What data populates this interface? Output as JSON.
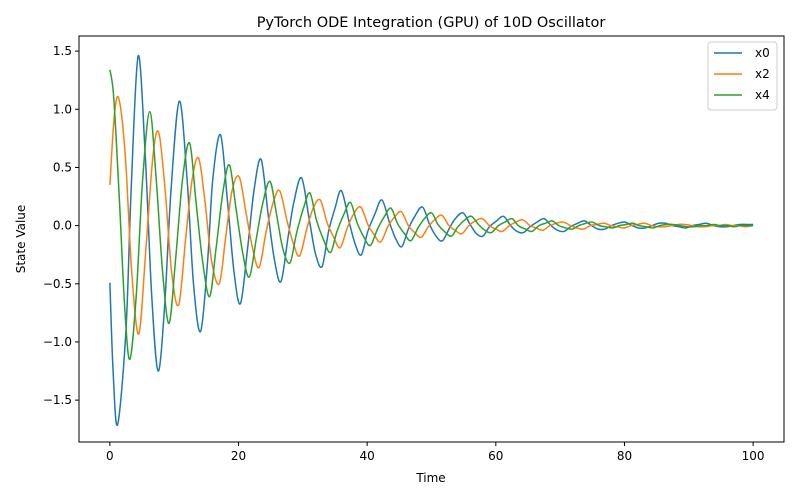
{
  "chart_data": {
    "type": "line",
    "title": "PyTorch ODE Integration (GPU) of 10D Oscillator",
    "xlabel": "Time",
    "ylabel": "State Value",
    "xlim": [
      -4.8,
      104.8
    ],
    "ylim": [
      -1.86,
      1.63
    ],
    "x_ticks": [
      0,
      20,
      40,
      60,
      80,
      100
    ],
    "y_ticks": [
      -1.5,
      -1.0,
      -0.5,
      0.0,
      0.5,
      1.0,
      1.5
    ],
    "x_tick_labels": [
      "0",
      "20",
      "40",
      "60",
      "80",
      "100"
    ],
    "y_tick_labels": [
      "−1.5",
      "−1.0",
      "−0.5",
      "0.0",
      "0.5",
      "1.0",
      "1.5"
    ],
    "grid": false,
    "legend_position": "top-right",
    "series": [
      {
        "name": "x0",
        "color": "#1f77b4",
        "points": [
          [
            0,
            -0.49
          ],
          [
            0.5,
            -1.25
          ],
          [
            1.2,
            -1.71
          ],
          [
            2.5,
            -0.9
          ],
          [
            3.3,
            0.3
          ],
          [
            4.4,
            1.46
          ],
          [
            5.5,
            0.6
          ],
          [
            6.5,
            -0.6
          ],
          [
            7.5,
            -1.25
          ],
          [
            8.5,
            -0.7
          ],
          [
            9.5,
            0.3
          ],
          [
            10.8,
            1.07
          ],
          [
            12,
            0.4
          ],
          [
            13,
            -0.5
          ],
          [
            14.1,
            -0.91
          ],
          [
            15.2,
            -0.3
          ],
          [
            16,
            0.4
          ],
          [
            17.2,
            0.78
          ],
          [
            18.3,
            0.2
          ],
          [
            19.3,
            -0.4
          ],
          [
            20.3,
            -0.67
          ],
          [
            21.4,
            -0.2
          ],
          [
            22.4,
            0.3
          ],
          [
            23.5,
            0.57
          ],
          [
            24.6,
            0.1
          ],
          [
            25.6,
            -0.3
          ],
          [
            26.6,
            -0.48
          ],
          [
            27.7,
            -0.1
          ],
          [
            28.6,
            0.2
          ],
          [
            29.8,
            0.41
          ],
          [
            31,
            0.05
          ],
          [
            32,
            -0.25
          ],
          [
            33,
            -0.35
          ],
          [
            34,
            -0.05
          ],
          [
            35,
            0.15
          ],
          [
            36,
            0.3
          ],
          [
            37.2,
            0.03
          ],
          [
            38.2,
            -0.17
          ],
          [
            39.1,
            -0.25
          ],
          [
            40.1,
            -0.05
          ],
          [
            41.2,
            0.1
          ],
          [
            42.3,
            0.22
          ],
          [
            43.5,
            0.02
          ],
          [
            44.5,
            -0.12
          ],
          [
            45.4,
            -0.18
          ],
          [
            46.4,
            -0.03
          ],
          [
            47.4,
            0.08
          ],
          [
            48.6,
            0.16
          ],
          [
            49.7,
            0.01
          ],
          [
            50.7,
            -0.09
          ],
          [
            51.7,
            -0.13
          ],
          [
            52.8,
            -0.02
          ],
          [
            53.7,
            0.06
          ],
          [
            54.9,
            0.11
          ],
          [
            56,
            0.01
          ],
          [
            57,
            -0.07
          ],
          [
            58,
            -0.09
          ],
          [
            59,
            -0.01
          ],
          [
            60.1,
            0.04
          ],
          [
            61.2,
            0.08
          ],
          [
            62.3,
            0.0
          ],
          [
            63.3,
            -0.05
          ],
          [
            64.3,
            -0.06
          ],
          [
            65.3,
            -0.01
          ],
          [
            66.4,
            0.03
          ],
          [
            67.5,
            0.06
          ],
          [
            68.6,
            0.0
          ],
          [
            69.6,
            -0.04
          ],
          [
            70.6,
            -0.05
          ],
          [
            71.6,
            -0.01
          ],
          [
            72.7,
            0.02
          ],
          [
            73.8,
            0.04
          ],
          [
            74.9,
            0.0
          ],
          [
            75.9,
            -0.03
          ],
          [
            76.9,
            -0.03
          ],
          [
            78,
            0.0
          ],
          [
            79,
            0.02
          ],
          [
            80.1,
            0.03
          ],
          [
            81.2,
            0.0
          ],
          [
            82.2,
            -0.02
          ],
          [
            83.2,
            -0.02
          ],
          [
            84.3,
            0.0
          ],
          [
            85.3,
            0.02
          ],
          [
            86.4,
            0.02
          ],
          [
            87.5,
            0.0
          ],
          [
            88.5,
            -0.01
          ],
          [
            89.5,
            -0.02
          ],
          [
            90.6,
            0.0
          ],
          [
            91.6,
            0.01
          ],
          [
            92.7,
            0.02
          ],
          [
            93.8,
            0.0
          ],
          [
            94.8,
            -0.01
          ],
          [
            95.8,
            -0.01
          ],
          [
            96.9,
            0.0
          ],
          [
            97.9,
            0.01
          ],
          [
            99,
            0.01
          ],
          [
            100,
            0.01
          ]
        ]
      },
      {
        "name": "x2",
        "color": "#ff7f0e",
        "points": [
          [
            0,
            0.35
          ],
          [
            0.7,
            0.95
          ],
          [
            1.4,
            1.09
          ],
          [
            2.4,
            0.6
          ],
          [
            3.4,
            -0.4
          ],
          [
            4.5,
            -0.93
          ],
          [
            5.6,
            -0.2
          ],
          [
            6.7,
            0.6
          ],
          [
            7.6,
            0.8
          ],
          [
            8.6,
            0.3
          ],
          [
            9.6,
            -0.4
          ],
          [
            10.7,
            -0.68
          ],
          [
            11.8,
            -0.1
          ],
          [
            12.8,
            0.4
          ],
          [
            13.8,
            0.58
          ],
          [
            14.8,
            0.2
          ],
          [
            15.8,
            -0.3
          ],
          [
            17,
            -0.5
          ],
          [
            18,
            -0.1
          ],
          [
            19,
            0.3
          ],
          [
            20.1,
            0.42
          ],
          [
            21.2,
            0.1
          ],
          [
            22.2,
            -0.2
          ],
          [
            23.2,
            -0.36
          ],
          [
            24.3,
            -0.05
          ],
          [
            25.4,
            0.2
          ],
          [
            26.4,
            0.3
          ],
          [
            27.5,
            0.05
          ],
          [
            28.5,
            -0.15
          ],
          [
            29.5,
            -0.26
          ],
          [
            30.6,
            -0.03
          ],
          [
            31.6,
            0.15
          ],
          [
            32.7,
            0.22
          ],
          [
            33.8,
            0.02
          ],
          [
            34.8,
            -0.1
          ],
          [
            35.8,
            -0.19
          ],
          [
            36.9,
            -0.02
          ],
          [
            37.9,
            0.1
          ],
          [
            39,
            0.16
          ],
          [
            40.1,
            0.01
          ],
          [
            41.1,
            -0.08
          ],
          [
            42.1,
            -0.14
          ],
          [
            43.2,
            -0.01
          ],
          [
            44.2,
            0.07
          ],
          [
            45.3,
            0.12
          ],
          [
            46.4,
            0.0
          ],
          [
            47.4,
            -0.06
          ],
          [
            48.4,
            -0.1
          ],
          [
            49.5,
            -0.01
          ],
          [
            50.5,
            0.05
          ],
          [
            51.6,
            0.09
          ],
          [
            52.7,
            0.0
          ],
          [
            53.7,
            -0.04
          ],
          [
            54.7,
            -0.07
          ],
          [
            55.8,
            0.0
          ],
          [
            56.8,
            0.04
          ],
          [
            57.9,
            0.06
          ],
          [
            59,
            0.0
          ],
          [
            60,
            -0.03
          ],
          [
            61,
            -0.05
          ],
          [
            62.1,
            0.0
          ],
          [
            63.1,
            0.03
          ],
          [
            64.2,
            0.05
          ],
          [
            65.3,
            0.0
          ],
          [
            66.3,
            -0.02
          ],
          [
            67.3,
            -0.04
          ],
          [
            68.4,
            0.0
          ],
          [
            69.4,
            0.02
          ],
          [
            70.5,
            0.03
          ],
          [
            71.6,
            0.0
          ],
          [
            72.6,
            -0.02
          ],
          [
            73.6,
            -0.03
          ],
          [
            74.7,
            0.0
          ],
          [
            75.7,
            0.01
          ],
          [
            76.8,
            0.02
          ],
          [
            77.9,
            0.0
          ],
          [
            78.9,
            -0.01
          ],
          [
            79.9,
            -0.02
          ],
          [
            81,
            0.0
          ],
          [
            82,
            0.01
          ],
          [
            83.1,
            0.02
          ],
          [
            84.2,
            0.0
          ],
          [
            85.2,
            -0.01
          ],
          [
            86.2,
            -0.01
          ],
          [
            87.3,
            0.0
          ],
          [
            88.3,
            0.01
          ],
          [
            89.4,
            0.01
          ],
          [
            90.5,
            0.0
          ],
          [
            91.5,
            -0.01
          ],
          [
            92.5,
            -0.01
          ],
          [
            93.6,
            0.0
          ],
          [
            94.6,
            0.0
          ],
          [
            95.7,
            0.01
          ],
          [
            96.8,
            0.0
          ],
          [
            97.8,
            0.0
          ],
          [
            98.8,
            -0.01
          ],
          [
            100,
            0.0
          ]
        ]
      },
      {
        "name": "x4",
        "color": "#2ca02c",
        "points": [
          [
            0,
            1.34
          ],
          [
            0.6,
            1.1
          ],
          [
            1.5,
            0.2
          ],
          [
            2.3,
            -0.7
          ],
          [
            3.1,
            -1.15
          ],
          [
            4.1,
            -0.6
          ],
          [
            5.1,
            0.4
          ],
          [
            6.2,
            0.98
          ],
          [
            7.2,
            0.4
          ],
          [
            8.2,
            -0.4
          ],
          [
            9.2,
            -0.84
          ],
          [
            10.2,
            -0.3
          ],
          [
            11.3,
            0.4
          ],
          [
            12.4,
            0.71
          ],
          [
            13.4,
            0.2
          ],
          [
            14.4,
            -0.3
          ],
          [
            15.5,
            -0.61
          ],
          [
            16.5,
            -0.2
          ],
          [
            17.6,
            0.3
          ],
          [
            18.6,
            0.52
          ],
          [
            19.6,
            0.15
          ],
          [
            20.7,
            -0.25
          ],
          [
            21.7,
            -0.44
          ],
          [
            22.8,
            -0.1
          ],
          [
            23.8,
            0.2
          ],
          [
            24.9,
            0.38
          ],
          [
            25.9,
            0.1
          ],
          [
            26.9,
            -0.2
          ],
          [
            28,
            -0.32
          ],
          [
            29,
            -0.07
          ],
          [
            30.1,
            0.15
          ],
          [
            31.1,
            0.28
          ],
          [
            32.1,
            0.05
          ],
          [
            33.2,
            -0.12
          ],
          [
            34.3,
            -0.23
          ],
          [
            35.3,
            -0.05
          ],
          [
            36.4,
            0.1
          ],
          [
            37.4,
            0.2
          ],
          [
            38.4,
            0.03
          ],
          [
            39.5,
            -0.1
          ],
          [
            40.5,
            -0.17
          ],
          [
            41.6,
            -0.03
          ],
          [
            42.7,
            0.08
          ],
          [
            43.7,
            0.15
          ],
          [
            44.7,
            0.02
          ],
          [
            45.8,
            -0.07
          ],
          [
            46.8,
            -0.13
          ],
          [
            47.9,
            -0.02
          ],
          [
            48.9,
            0.06
          ],
          [
            50,
            0.11
          ],
          [
            51,
            0.01
          ],
          [
            52,
            -0.05
          ],
          [
            53.1,
            -0.09
          ],
          [
            54.1,
            -0.01
          ],
          [
            55.2,
            0.05
          ],
          [
            56.2,
            0.08
          ],
          [
            57.3,
            0.01
          ],
          [
            58.3,
            -0.04
          ],
          [
            59.3,
            -0.06
          ],
          [
            60.4,
            0.0
          ],
          [
            61.4,
            0.03
          ],
          [
            62.5,
            0.06
          ],
          [
            63.5,
            0.0
          ],
          [
            64.6,
            -0.03
          ],
          [
            65.6,
            -0.05
          ],
          [
            66.7,
            0.0
          ],
          [
            67.7,
            0.02
          ],
          [
            68.8,
            0.04
          ],
          [
            69.8,
            0.0
          ],
          [
            70.9,
            -0.02
          ],
          [
            71.9,
            -0.03
          ],
          [
            72.9,
            0.0
          ],
          [
            74,
            0.02
          ],
          [
            75,
            0.03
          ],
          [
            76.1,
            0.0
          ],
          [
            77.1,
            -0.01
          ],
          [
            78.2,
            -0.02
          ],
          [
            79.2,
            0.0
          ],
          [
            80.3,
            0.01
          ],
          [
            81.3,
            0.02
          ],
          [
            82.3,
            0.0
          ],
          [
            83.4,
            -0.01
          ],
          [
            84.4,
            -0.02
          ],
          [
            85.5,
            0.0
          ],
          [
            86.5,
            0.01
          ],
          [
            87.6,
            0.01
          ],
          [
            88.6,
            0.0
          ],
          [
            89.7,
            -0.01
          ],
          [
            90.7,
            -0.01
          ],
          [
            91.8,
            0.0
          ],
          [
            92.8,
            0.0
          ],
          [
            93.9,
            0.01
          ],
          [
            94.9,
            0.0
          ],
          [
            96,
            0.0
          ],
          [
            97,
            -0.01
          ],
          [
            98,
            0.0
          ],
          [
            99,
            0.0
          ],
          [
            100,
            0.0
          ]
        ]
      }
    ]
  }
}
